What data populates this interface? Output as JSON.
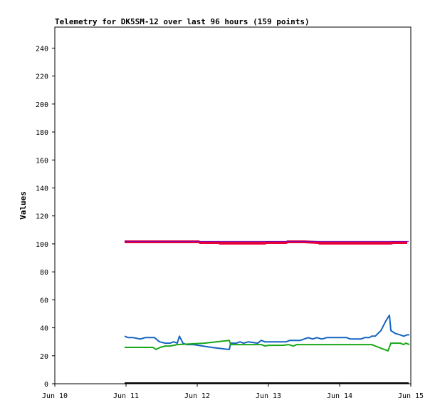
{
  "chart_data": {
    "type": "line",
    "title": "Telemetry for DK5SM-12 over last 96 hours (159 points)",
    "xlabel": "",
    "ylabel": "Values",
    "xlim": [
      "Jun 10",
      "Jun 15"
    ],
    "ylim": [
      0,
      255
    ],
    "x_ticks": [
      "Jun 10",
      "Jun 11",
      "Jun 12",
      "Jun 13",
      "Jun 14",
      "Jun 15"
    ],
    "y_ticks": [
      0,
      20,
      40,
      60,
      80,
      100,
      120,
      140,
      160,
      180,
      200,
      220,
      240
    ],
    "grid": false,
    "legend": "none",
    "series": [
      {
        "color": "#e8003a",
        "width": 4,
        "points": [
          [
            0.98,
            101.5
          ],
          [
            2.02,
            101.5
          ],
          [
            2.04,
            101
          ],
          [
            2.3,
            101
          ],
          [
            2.32,
            100.5
          ],
          [
            2.95,
            100.5
          ],
          [
            2.97,
            101
          ],
          [
            3.25,
            101
          ],
          [
            3.27,
            101.5
          ],
          [
            3.5,
            101.5
          ],
          [
            3.7,
            101
          ],
          [
            3.72,
            100.5
          ],
          [
            4.72,
            100.5
          ],
          [
            4.75,
            101
          ],
          [
            4.95,
            101
          ]
        ]
      },
      {
        "color": "#7a00aa",
        "width": 1,
        "points": [
          [
            0.98,
            101.8
          ],
          [
            4.97,
            101.8
          ]
        ]
      },
      {
        "color": "#1565c0",
        "width": 2,
        "points": [
          [
            0.98,
            34
          ],
          [
            1.03,
            33
          ],
          [
            1.1,
            33
          ],
          [
            1.2,
            32
          ],
          [
            1.27,
            33
          ],
          [
            1.4,
            33
          ],
          [
            1.47,
            30
          ],
          [
            1.55,
            29
          ],
          [
            1.62,
            29
          ],
          [
            1.67,
            30
          ],
          [
            1.72,
            29
          ],
          [
            1.75,
            34
          ],
          [
            1.8,
            29
          ],
          [
            1.85,
            28
          ],
          [
            1.95,
            28
          ],
          [
            2.2,
            26
          ],
          [
            2.45,
            24.5
          ],
          [
            2.47,
            29
          ],
          [
            2.55,
            29
          ],
          [
            2.6,
            30
          ],
          [
            2.65,
            29
          ],
          [
            2.72,
            30
          ],
          [
            2.85,
            29
          ],
          [
            2.9,
            31
          ],
          [
            2.95,
            30
          ],
          [
            3.25,
            30
          ],
          [
            3.3,
            31
          ],
          [
            3.45,
            31
          ],
          [
            3.5,
            32
          ],
          [
            3.56,
            33
          ],
          [
            3.62,
            32
          ],
          [
            3.68,
            33
          ],
          [
            3.75,
            32
          ],
          [
            3.82,
            33
          ],
          [
            4.1,
            33
          ],
          [
            4.15,
            32
          ],
          [
            4.3,
            32
          ],
          [
            4.35,
            33
          ],
          [
            4.42,
            33
          ],
          [
            4.45,
            34
          ],
          [
            4.5,
            34
          ],
          [
            4.52,
            35
          ],
          [
            4.58,
            38
          ],
          [
            4.65,
            45
          ],
          [
            4.7,
            49
          ],
          [
            4.72,
            38
          ],
          [
            4.78,
            36
          ],
          [
            4.85,
            35
          ],
          [
            4.9,
            34
          ],
          [
            4.95,
            35
          ],
          [
            4.98,
            35
          ]
        ]
      },
      {
        "color": "#18a818",
        "width": 2,
        "points": [
          [
            0.98,
            26
          ],
          [
            1.38,
            26
          ],
          [
            1.42,
            24.5
          ],
          [
            1.48,
            26
          ],
          [
            1.55,
            27
          ],
          [
            1.62,
            27
          ],
          [
            1.72,
            28
          ],
          [
            2.1,
            29
          ],
          [
            2.45,
            31
          ],
          [
            2.47,
            28
          ],
          [
            2.9,
            28
          ],
          [
            2.95,
            27
          ],
          [
            3.0,
            27.5
          ],
          [
            3.2,
            27.5
          ],
          [
            3.28,
            28
          ],
          [
            3.35,
            27
          ],
          [
            3.4,
            28
          ],
          [
            4.45,
            28
          ],
          [
            4.55,
            26
          ],
          [
            4.68,
            23.5
          ],
          [
            4.72,
            29
          ],
          [
            4.85,
            29
          ],
          [
            4.9,
            28
          ],
          [
            4.93,
            29
          ],
          [
            4.98,
            28
          ]
        ]
      },
      {
        "color": "#000000",
        "width": 2,
        "points": [
          [
            0.98,
            0.5
          ],
          [
            4.97,
            0.5
          ]
        ]
      }
    ]
  }
}
